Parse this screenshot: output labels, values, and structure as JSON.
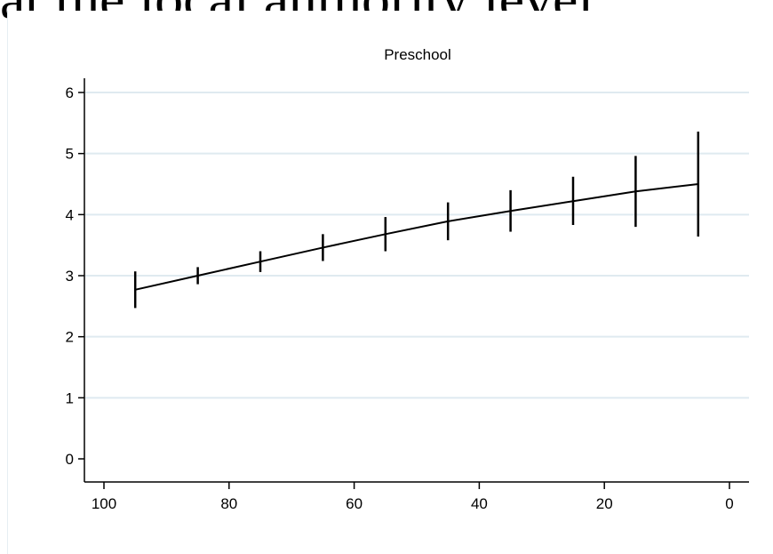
{
  "heading": "at the local authority level",
  "chart_data": {
    "type": "line",
    "title": "Preschool",
    "xlabel": "",
    "ylabel": "",
    "xlim": [
      100,
      0
    ],
    "ylim": [
      0,
      6
    ],
    "x_ticks": [
      100,
      80,
      60,
      40,
      20,
      0
    ],
    "y_ticks": [
      0,
      1,
      2,
      3,
      4,
      5,
      6
    ],
    "grid": "horizontal",
    "series": [
      {
        "x": [
          95,
          85,
          75,
          65,
          55,
          45,
          35,
          25,
          15,
          5
        ],
        "y": [
          2.77,
          3.0,
          3.23,
          3.46,
          3.68,
          3.89,
          4.06,
          4.22,
          4.38,
          4.5
        ],
        "error_low": [
          2.47,
          2.86,
          3.06,
          3.24,
          3.4,
          3.58,
          3.72,
          3.83,
          3.8,
          3.64
        ],
        "error_high": [
          3.07,
          3.14,
          3.4,
          3.68,
          3.96,
          4.2,
          4.4,
          4.62,
          4.96,
          5.36
        ]
      }
    ],
    "colors": {
      "line": "#000000",
      "grid": "#dfeaf0",
      "axis": "#000000"
    }
  }
}
